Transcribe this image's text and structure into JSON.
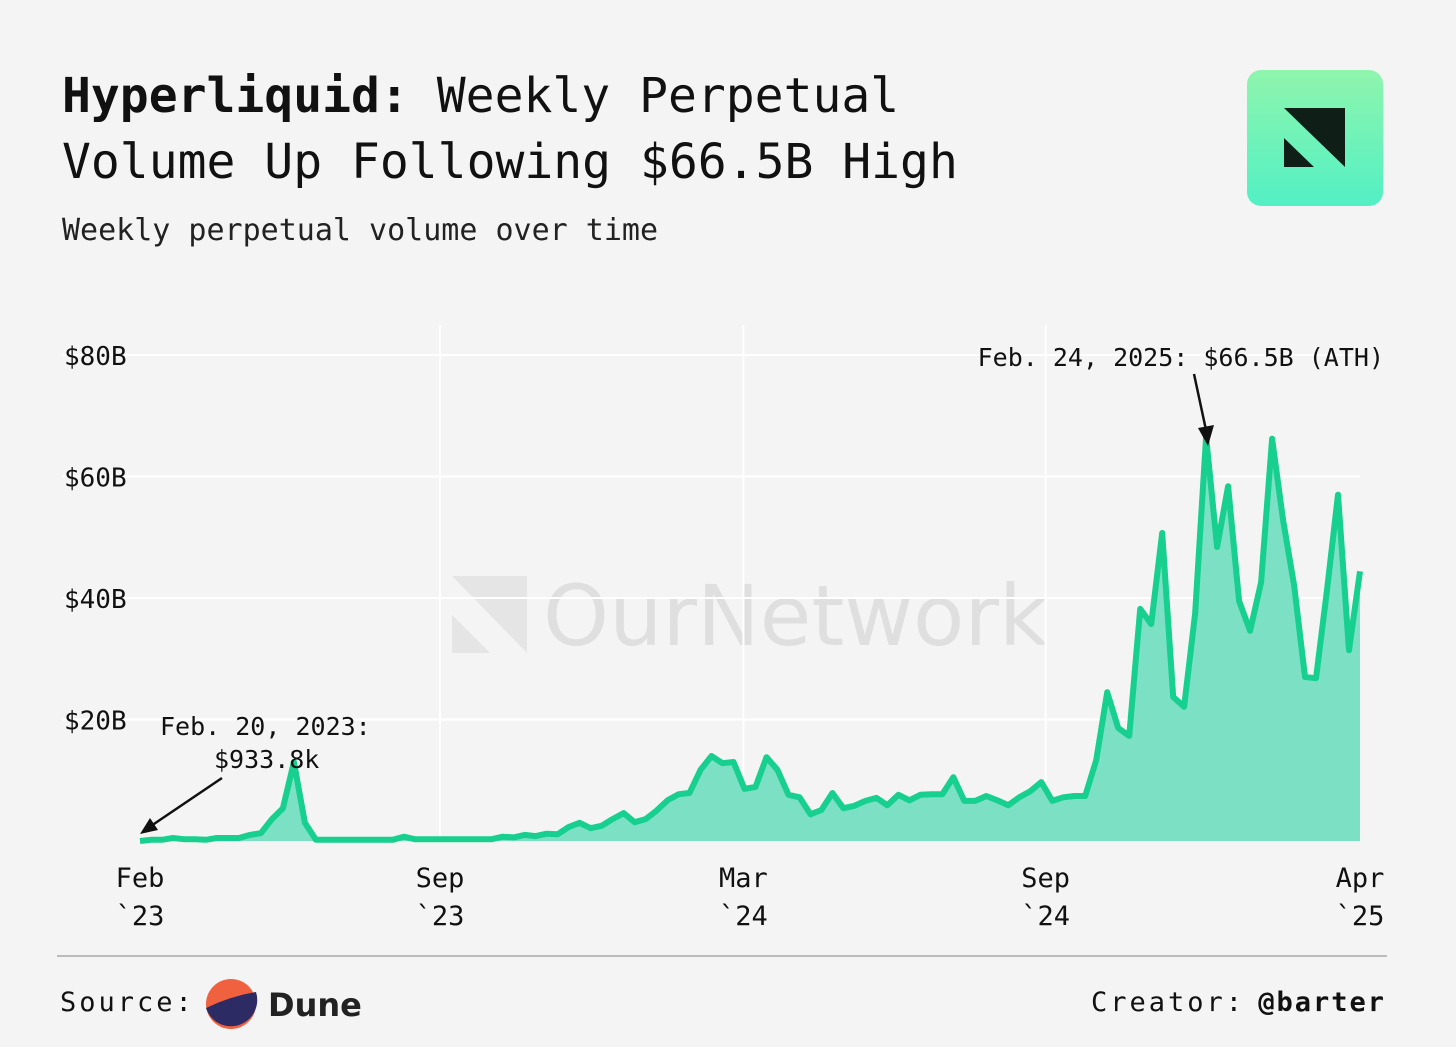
{
  "chart_data": {
    "type": "area",
    "title_bold": "Hyperliquid:",
    "title_line1": "Weekly Perpetual",
    "title_line2": "Volume Up Following $66.5B High",
    "subtitle": "Weekly perpetual volume over time",
    "watermark": "OurNetwork",
    "annotations": [
      {
        "line1": "Feb. 20, 2023:",
        "line2": "$933.8k"
      },
      {
        "line1": "Feb. 24, 2025: $66.5B (ATH)"
      }
    ],
    "source_label": "Source:",
    "source_name": "Dune",
    "creator_label": "Creator:",
    "creator_name": "@barter",
    "color": "#17cf8e",
    "fill": "#7be0c4",
    "grid": true,
    "xlim": [
      0,
      111
    ],
    "xticks": [
      {
        "value": 0,
        "label": "Feb `23"
      },
      {
        "value": 27.3,
        "label": "Sep `23"
      },
      {
        "value": 54.9,
        "label": "Mar `24"
      },
      {
        "value": 82.4,
        "label": "Sep `24"
      },
      {
        "value": 111,
        "label": "Apr `25"
      }
    ],
    "ylim": [
      0,
      80
    ],
    "yticks": [
      {
        "value": 20,
        "label": "$20B"
      },
      {
        "value": 40,
        "label": "$40B"
      },
      {
        "value": 60,
        "label": "$60B"
      },
      {
        "value": 80,
        "label": "$80B"
      }
    ],
    "values": [
      0.0009338,
      0.2,
      0.2,
      0.5,
      0.3,
      0.3,
      0.2,
      0.5,
      0.5,
      0.5,
      1,
      1.3,
      3.6,
      5.4,
      13,
      3,
      0.2,
      0.2,
      0.2,
      0.2,
      0.2,
      0.2,
      0.2,
      0.2,
      0.7,
      0.3,
      0.3,
      0.3,
      0.3,
      0.3,
      0.3,
      0.3,
      0.3,
      0.7,
      0.6,
      1,
      0.8,
      1.2,
      1.1,
      2.3,
      3,
      2.1,
      2.5,
      3.6,
      4.6,
      3.1,
      3.6,
      5,
      6.7,
      7.7,
      7.9,
      11.7,
      14,
      12.8,
      13,
      8.6,
      8.9,
      13.8,
      11.7,
      7.6,
      7.2,
      4.4,
      5.1,
      7.9,
      5.4,
      5.8,
      6.6,
      7.1,
      5.9,
      7.6,
      6.7,
      7.6,
      7.7,
      7.7,
      10.5,
      6.6,
      6.6,
      7.4,
      6.7,
      5.9,
      7.2,
      8.2,
      9.7,
      6.6,
      7.2,
      7.4,
      7.4,
      13.3,
      24.5,
      18.6,
      17.3,
      38.2,
      35.7,
      50.7,
      23.7,
      22.1,
      37.4,
      66.5,
      48.4,
      58.4,
      39.5,
      34.6,
      42.6,
      66.2,
      52.8,
      42.1,
      27,
      26.8,
      41.3,
      57,
      31.4,
      44.4
    ]
  }
}
